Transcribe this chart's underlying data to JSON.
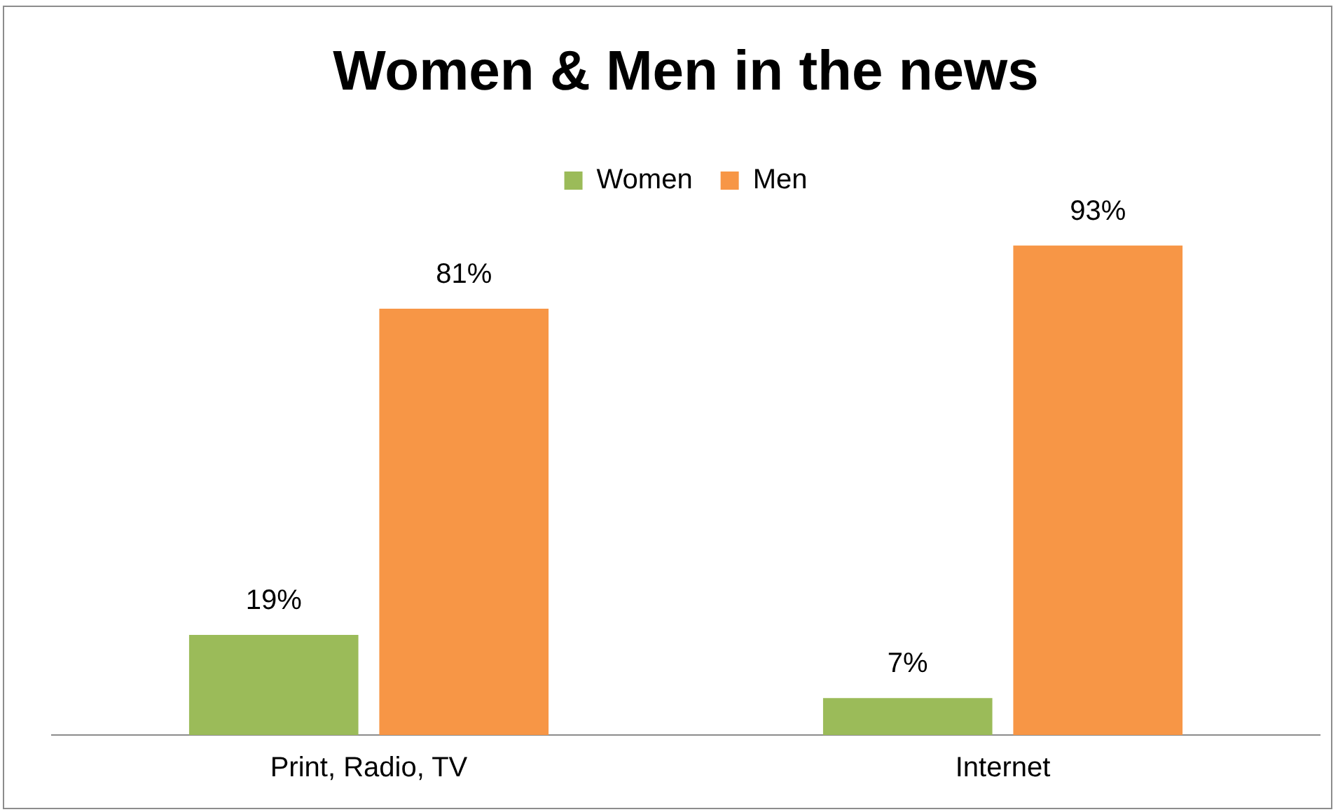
{
  "chart_data": {
    "type": "bar",
    "title": "Women & Men in the news",
    "categories": [
      "Print, Radio, TV",
      "Internet"
    ],
    "series": [
      {
        "name": "Women",
        "color": "#9bbb59",
        "values": [
          19,
          7
        ],
        "value_labels": [
          "19%",
          "7%"
        ]
      },
      {
        "name": "Men",
        "color": "#f79646",
        "values": [
          81,
          93
        ],
        "value_labels": [
          "81%",
          "93%"
        ]
      }
    ],
    "legend": "top",
    "grid": false,
    "tick_labels": "x"
  }
}
